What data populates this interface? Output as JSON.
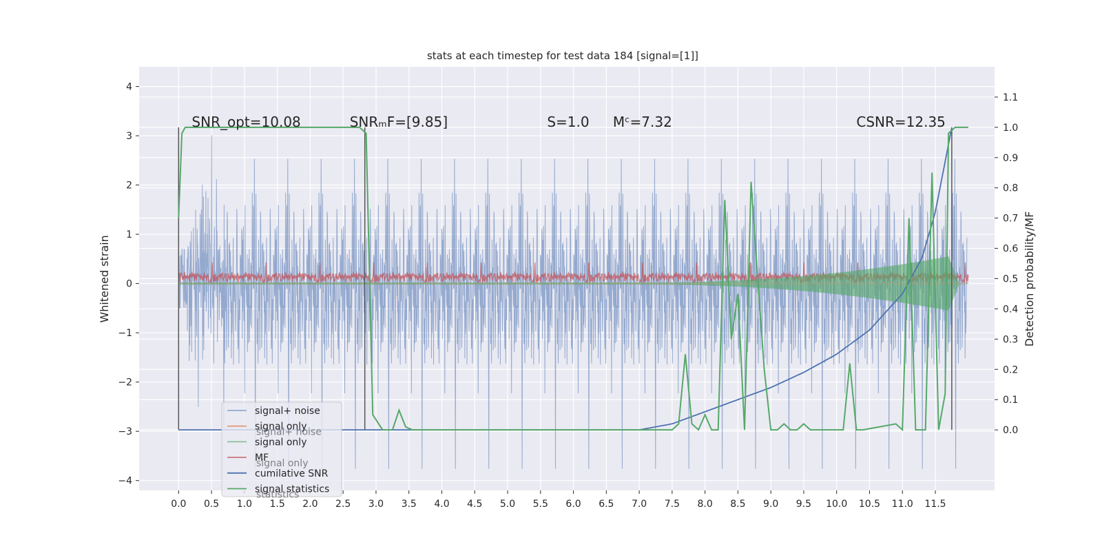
{
  "chart_data": {
    "type": "line",
    "title": "stats at each timestep for test data 184 [signal=[1]]",
    "ylabel_left": "Whitened strain",
    "ylabel_right": "Detection probability/MF",
    "xlim": [
      -0.6,
      12.4
    ],
    "ylim_left": [
      -4.2,
      4.4
    ],
    "ylim_right": [
      -0.2,
      1.2
    ],
    "x_ticks": [
      "0.0",
      "0.5",
      "1.0",
      "1.5",
      "2.0",
      "2.5",
      "3.0",
      "3.5",
      "4.0",
      "4.5",
      "5.0",
      "5.5",
      "6.0",
      "6.5",
      "7.0",
      "7.5",
      "8.0",
      "8.5",
      "9.0",
      "9.5",
      "10.0",
      "10.5",
      "11.0",
      "11.5"
    ],
    "y_left_ticks": [
      "4",
      "3",
      "2",
      "1",
      "0",
      "−1",
      "−2",
      "−3",
      "−4"
    ],
    "y_right_ticks": [
      "1.1",
      "1.0",
      "0.9",
      "0.8",
      "0.7",
      "0.6",
      "0.5",
      "0.4",
      "0.3",
      "0.2",
      "0.1",
      "0.0"
    ],
    "grid": true,
    "legend_position": "lower-left",
    "annotations": [
      {
        "text": "SNR_opt=10.08",
        "x": 0.2
      },
      {
        "text": "SNRₘF=[9.85]",
        "x": 2.6
      },
      {
        "text": "S=1.0",
        "x": 5.6
      },
      {
        "text": "Mᶜ=7.32",
        "x": 6.6
      },
      {
        "text": "CSNR=12.35",
        "x": 10.3
      }
    ],
    "series": [
      {
        "name": "signal+ noise",
        "color": "#4c72b0",
        "axis": "left",
        "kind": "noise",
        "x_range": [
          0,
          11.98
        ],
        "amplitude_std": 0.95
      },
      {
        "name": "signal only",
        "color": "#dd8452",
        "axis": "left",
        "kind": "chirp"
      },
      {
        "name": "signal only",
        "color": "#55a868",
        "axis": "left",
        "kind": "chirp",
        "amplitude_start": 0.02,
        "amplitude_end": 0.55,
        "x_end": 11.7
      },
      {
        "name": "MF",
        "color": "#c44e52",
        "axis": "left",
        "kind": "band",
        "center": 0.12,
        "half_width": 0.1
      },
      {
        "name": "cumilative SNR",
        "color": "#4c72b0",
        "axis": "right",
        "x": [
          0.0,
          6.5,
          7.0,
          7.5,
          8.0,
          8.5,
          9.0,
          9.5,
          10.0,
          10.5,
          11.0,
          11.3,
          11.5,
          11.75
        ],
        "values": [
          0.0,
          0.0,
          0.0,
          0.02,
          0.06,
          0.1,
          0.14,
          0.19,
          0.25,
          0.33,
          0.45,
          0.57,
          0.72,
          1.0
        ]
      },
      {
        "name": "signal statistics",
        "color": "#55a868",
        "axis": "right",
        "x": [
          0.0,
          0.05,
          0.1,
          2.75,
          2.85,
          2.95,
          3.1,
          3.25,
          3.35,
          3.45,
          3.55,
          7.5,
          7.6,
          7.7,
          7.8,
          7.9,
          8.0,
          8.1,
          8.2,
          8.3,
          8.4,
          8.5,
          8.6,
          8.7,
          8.8,
          8.9,
          9.0,
          9.1,
          9.2,
          9.3,
          9.4,
          9.5,
          9.6,
          9.7,
          10.1,
          10.2,
          10.3,
          10.4,
          10.9,
          11.0,
          11.1,
          11.2,
          11.3,
          11.35,
          11.45,
          11.55,
          11.65,
          11.7,
          11.8,
          11.9,
          12.0
        ],
        "values": [
          0.7,
          0.98,
          1.0,
          1.0,
          0.98,
          0.05,
          0.0,
          0.0,
          0.065,
          0.01,
          0.0,
          0.0,
          0.02,
          0.25,
          0.02,
          0.0,
          0.05,
          0.0,
          0.0,
          0.76,
          0.3,
          0.45,
          0.0,
          0.82,
          0.5,
          0.2,
          0.0,
          0.0,
          0.02,
          0.0,
          0.0,
          0.02,
          0.0,
          0.0,
          0.0,
          0.22,
          0.0,
          0.0,
          0.02,
          0.0,
          0.7,
          0.0,
          0.0,
          0.0,
          0.85,
          0.0,
          0.12,
          0.98,
          1.0,
          1.0,
          1.0
        ]
      }
    ],
    "vertical_markers": [
      0.0,
      2.83,
      11.75
    ],
    "legend": [
      {
        "label": "signal+ noise",
        "color": "#4c72b0",
        "alpha": 0.55
      },
      {
        "label": "signal only",
        "color": "#dd8452",
        "alpha": 0.75
      },
      {
        "label": "signal only",
        "color": "#55a868",
        "alpha": 0.65
      },
      {
        "label": "MF",
        "color": "#c44e52",
        "alpha": 0.75
      },
      {
        "label": "cumilative SNR",
        "color": "#4c72b0",
        "alpha": 1
      },
      {
        "label": "signal statistics",
        "color": "#55a868",
        "alpha": 1
      }
    ],
    "legend_ghost_texts": [
      "signal+ noise",
      "signal only",
      "statistics"
    ]
  }
}
